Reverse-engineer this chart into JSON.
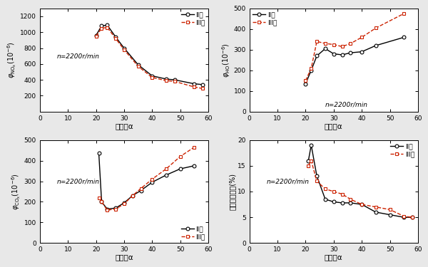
{
  "nox_x_II": [
    20,
    22,
    24,
    27,
    30,
    35,
    40,
    45,
    48,
    55,
    58
  ],
  "nox_y_II": [
    960,
    1080,
    1090,
    940,
    800,
    590,
    450,
    410,
    400,
    350,
    340
  ],
  "nox_x_III": [
    20,
    22,
    24,
    27,
    30,
    35,
    40,
    45,
    48,
    55,
    58
  ],
  "nox_y_III": [
    950,
    1050,
    1060,
    920,
    780,
    570,
    430,
    390,
    380,
    310,
    290
  ],
  "ho_x_II": [
    20,
    22,
    24,
    27,
    30,
    33,
    36,
    40,
    45,
    55
  ],
  "ho_y_II": [
    135,
    200,
    270,
    305,
    280,
    275,
    285,
    290,
    320,
    360
  ],
  "ho_x_III": [
    20,
    22,
    24,
    27,
    30,
    33,
    36,
    40,
    45,
    55
  ],
  "ho_y_III": [
    150,
    210,
    340,
    330,
    325,
    315,
    330,
    360,
    405,
    475
  ],
  "co_x_II": [
    21,
    22,
    24,
    27,
    30,
    33,
    36,
    40,
    45,
    50,
    55
  ],
  "co_y_II": [
    435,
    200,
    165,
    170,
    195,
    230,
    255,
    295,
    330,
    360,
    375
  ],
  "co_x_III": [
    21,
    22,
    24,
    27,
    30,
    33,
    36,
    40,
    45,
    50,
    55
  ],
  "co_y_III": [
    220,
    200,
    160,
    165,
    190,
    230,
    265,
    310,
    360,
    420,
    465
  ],
  "smoke_x_II": [
    21,
    22,
    24,
    27,
    30,
    33,
    36,
    40,
    45,
    50,
    55,
    58
  ],
  "smoke_y_II": [
    16,
    19,
    13,
    8.5,
    8.0,
    7.8,
    7.8,
    7.5,
    6.0,
    5.5,
    5.0,
    5.0
  ],
  "smoke_x_III": [
    21,
    22,
    24,
    27,
    30,
    33,
    36,
    40,
    45,
    50,
    55,
    58
  ],
  "smoke_y_III": [
    15,
    16,
    12,
    10.5,
    10.0,
    9.5,
    8.5,
    7.5,
    7.0,
    6.5,
    5.2,
    5.0
  ],
  "color_II": "#000000",
  "color_III": "#cc2200",
  "label_II": "II型",
  "label_III": "III型",
  "annotation": "n=2200r/min",
  "nox_ylabel": "$\\varphi_{\\rm NO_x}(10^{-6})$",
  "ho_ylabel": "$\\varphi_{\\rm HO}(10^{-6})$",
  "co_ylabel": "$\\varphi_{\\rm CO_x}(10^{-6})$",
  "smoke_ylabel": "不透光烟度値(%)",
  "xlabel": "空燃比α",
  "nox_ylim": [
    0,
    1300
  ],
  "ho_ylim": [
    0,
    500
  ],
  "co_ylim": [
    0,
    500
  ],
  "smoke_ylim": [
    0,
    20
  ],
  "xlim": [
    0,
    60
  ],
  "xticks": [
    0,
    10,
    20,
    30,
    40,
    50,
    60
  ],
  "nox_yticks": [
    200,
    400,
    600,
    800,
    1000,
    1200
  ],
  "ho_yticks": [
    0,
    100,
    200,
    300,
    400,
    500
  ],
  "co_yticks": [
    0,
    100,
    200,
    300,
    400,
    500
  ],
  "smoke_yticks": [
    0,
    5,
    10,
    15,
    20
  ],
  "bg_color": "#e8e8e8"
}
